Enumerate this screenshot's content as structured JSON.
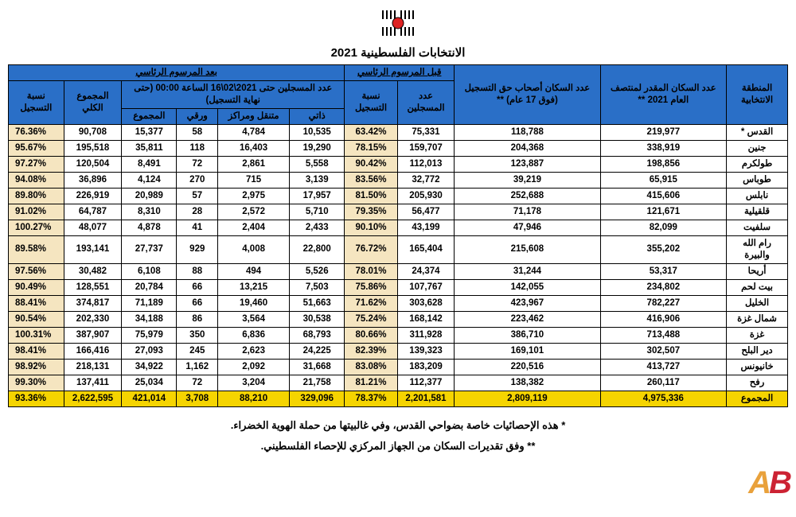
{
  "title": "الانتخابات الفلسطينية 2021",
  "headers": {
    "region": "المنطقة الانتخابية",
    "pop_est": "عدد السكان المقدر لمنتصف العام 2021 **",
    "eligible": "عدد السكان أصحاب حق التسجيل (فوق 17 عام) **",
    "before_group": "قبل المرسوم الرئاسي",
    "before_reg": "عدد المسجلين",
    "before_pct": "نسبة التسجيل",
    "after_group": "بعد المرسوم الرئاسي",
    "after_sub": "عدد المسجلين حتى 2021\\02\\16 الساعة 00:00 (حتى نهاية التسجيل)",
    "self": "ذاتي",
    "mobile": "متنقل ومراكز",
    "paper": "ورقي",
    "sum": "المجموع",
    "total_all": "المجموع الكلي",
    "after_pct": "نسبة التسجيل"
  },
  "rows": [
    {
      "region": "القدس *",
      "pop": "219,977",
      "elig": "118,788",
      "b_reg": "75,331",
      "b_pct": "63.42%",
      "self": "10,535",
      "mobile": "4,784",
      "paper": "58",
      "sum": "15,377",
      "total": "90,708",
      "a_pct": "76.36%"
    },
    {
      "region": "جنين",
      "pop": "338,919",
      "elig": "204,368",
      "b_reg": "159,707",
      "b_pct": "78.15%",
      "self": "19,290",
      "mobile": "16,403",
      "paper": "118",
      "sum": "35,811",
      "total": "195,518",
      "a_pct": "95.67%"
    },
    {
      "region": "طولكرم",
      "pop": "198,856",
      "elig": "123,887",
      "b_reg": "112,013",
      "b_pct": "90.42%",
      "self": "5,558",
      "mobile": "2,861",
      "paper": "72",
      "sum": "8,491",
      "total": "120,504",
      "a_pct": "97.27%"
    },
    {
      "region": "طوباس",
      "pop": "65,915",
      "elig": "39,219",
      "b_reg": "32,772",
      "b_pct": "83.56%",
      "self": "3,139",
      "mobile": "715",
      "paper": "270",
      "sum": "4,124",
      "total": "36,896",
      "a_pct": "94.08%"
    },
    {
      "region": "نابلس",
      "pop": "415,606",
      "elig": "252,688",
      "b_reg": "205,930",
      "b_pct": "81.50%",
      "self": "17,957",
      "mobile": "2,975",
      "paper": "57",
      "sum": "20,989",
      "total": "226,919",
      "a_pct": "89.80%"
    },
    {
      "region": "قلقيلية",
      "pop": "121,671",
      "elig": "71,178",
      "b_reg": "56,477",
      "b_pct": "79.35%",
      "self": "5,710",
      "mobile": "2,572",
      "paper": "28",
      "sum": "8,310",
      "total": "64,787",
      "a_pct": "91.02%"
    },
    {
      "region": "سلفيت",
      "pop": "82,099",
      "elig": "47,946",
      "b_reg": "43,199",
      "b_pct": "90.10%",
      "self": "2,433",
      "mobile": "2,404",
      "paper": "41",
      "sum": "4,878",
      "total": "48,077",
      "a_pct": "100.27%"
    },
    {
      "region": "رام الله والبيرة",
      "pop": "355,202",
      "elig": "215,608",
      "b_reg": "165,404",
      "b_pct": "76.72%",
      "self": "22,800",
      "mobile": "4,008",
      "paper": "929",
      "sum": "27,737",
      "total": "193,141",
      "a_pct": "89.58%"
    },
    {
      "region": "أريحا",
      "pop": "53,317",
      "elig": "31,244",
      "b_reg": "24,374",
      "b_pct": "78.01%",
      "self": "5,526",
      "mobile": "494",
      "paper": "88",
      "sum": "6,108",
      "total": "30,482",
      "a_pct": "97.56%"
    },
    {
      "region": "بيت لحم",
      "pop": "234,802",
      "elig": "142,055",
      "b_reg": "107,767",
      "b_pct": "75.86%",
      "self": "7,503",
      "mobile": "13,215",
      "paper": "66",
      "sum": "20,784",
      "total": "128,551",
      "a_pct": "90.49%"
    },
    {
      "region": "الخليل",
      "pop": "782,227",
      "elig": "423,967",
      "b_reg": "303,628",
      "b_pct": "71.62%",
      "self": "51,663",
      "mobile": "19,460",
      "paper": "66",
      "sum": "71,189",
      "total": "374,817",
      "a_pct": "88.41%"
    },
    {
      "region": "شمال غزة",
      "pop": "416,906",
      "elig": "223,462",
      "b_reg": "168,142",
      "b_pct": "75.24%",
      "self": "30,538",
      "mobile": "3,564",
      "paper": "86",
      "sum": "34,188",
      "total": "202,330",
      "a_pct": "90.54%"
    },
    {
      "region": "غزة",
      "pop": "713,488",
      "elig": "386,710",
      "b_reg": "311,928",
      "b_pct": "80.66%",
      "self": "68,793",
      "mobile": "6,836",
      "paper": "350",
      "sum": "75,979",
      "total": "387,907",
      "a_pct": "100.31%"
    },
    {
      "region": "دير البلح",
      "pop": "302,507",
      "elig": "169,101",
      "b_reg": "139,323",
      "b_pct": "82.39%",
      "self": "24,225",
      "mobile": "2,623",
      "paper": "245",
      "sum": "27,093",
      "total": "166,416",
      "a_pct": "98.41%"
    },
    {
      "region": "خانيونس",
      "pop": "413,727",
      "elig": "220,516",
      "b_reg": "183,209",
      "b_pct": "83.08%",
      "self": "31,668",
      "mobile": "2,092",
      "paper": "1,162",
      "sum": "34,922",
      "total": "218,131",
      "a_pct": "98.92%"
    },
    {
      "region": "رفح",
      "pop": "260,117",
      "elig": "138,382",
      "b_reg": "112,377",
      "b_pct": "81.21%",
      "self": "21,758",
      "mobile": "3,204",
      "paper": "72",
      "sum": "25,034",
      "total": "137,411",
      "a_pct": "99.30%"
    }
  ],
  "total": {
    "region": "المجموع",
    "pop": "4,975,336",
    "elig": "2,809,119",
    "b_reg": "2,201,581",
    "b_pct": "78.37%",
    "self": "329,096",
    "mobile": "88,210",
    "paper": "3,708",
    "sum": "421,014",
    "total": "2,622,595",
    "a_pct": "93.36%"
  },
  "footnotes": [
    "* هذه الإحصائيات خاصة بضواحي القدس، وفي غالبيتها من حملة الهوية الخضراء.",
    "** وفق تقديرات السكان من الجهاز المركزي للإحصاء الفلسطيني."
  ],
  "colors": {
    "header_bg": "#2a6fc7",
    "pct_bg": "#f5e5c0",
    "total_bg": "#f5d400"
  }
}
